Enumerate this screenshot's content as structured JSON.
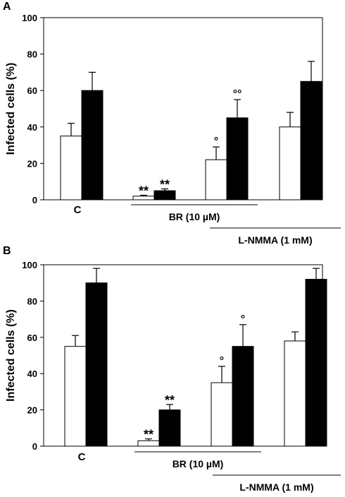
{
  "chart_data": [
    {
      "panel_label": "A",
      "type": "bar",
      "ylabel": "Infected cells (%)",
      "ylim": [
        0,
        100
      ],
      "yticks": [
        0,
        20,
        40,
        60,
        80,
        100
      ],
      "grid": false,
      "groups": [
        {
          "label": "C",
          "values": [
            35,
            60
          ],
          "errors": [
            7,
            10
          ],
          "marks": [
            "",
            ""
          ]
        },
        {
          "label": "",
          "values": [
            2,
            5
          ],
          "errors": [
            0.5,
            1
          ],
          "marks": [
            "**",
            "**"
          ]
        },
        {
          "label": "",
          "values": [
            22,
            45
          ],
          "errors": [
            7,
            10
          ],
          "marks": [
            "°",
            "°°"
          ]
        },
        {
          "label": "",
          "values": [
            40,
            65
          ],
          "errors": [
            8,
            11
          ],
          "marks": [
            "",
            ""
          ]
        }
      ],
      "series_colors": [
        "#ffffff",
        "#000000"
      ],
      "brackets": [
        {
          "label": "BR (10 µM)",
          "groups": [
            1,
            2
          ]
        },
        {
          "label": "L-NMMA (1 mM)",
          "groups": [
            2,
            3
          ]
        }
      ]
    },
    {
      "panel_label": "B",
      "type": "bar",
      "ylabel": "Infected cells (%)",
      "ylim": [
        0,
        100
      ],
      "yticks": [
        0,
        20,
        40,
        60,
        80,
        100
      ],
      "grid": false,
      "groups": [
        {
          "label": "C",
          "values": [
            55,
            90
          ],
          "errors": [
            6,
            8
          ],
          "marks": [
            "",
            ""
          ]
        },
        {
          "label": "",
          "values": [
            3,
            20
          ],
          "errors": [
            1,
            3
          ],
          "marks": [
            "**",
            "**"
          ]
        },
        {
          "label": "",
          "values": [
            35,
            55
          ],
          "errors": [
            9,
            12
          ],
          "marks": [
            "°",
            "°"
          ]
        },
        {
          "label": "",
          "values": [
            58,
            92
          ],
          "errors": [
            5,
            6
          ],
          "marks": [
            "",
            ""
          ]
        }
      ],
      "series_colors": [
        "#ffffff",
        "#000000"
      ],
      "brackets": [
        {
          "label": "BR (10 µM)",
          "groups": [
            1,
            2
          ]
        },
        {
          "label": "L-NMMA (1 mM)",
          "groups": [
            2,
            3
          ]
        }
      ]
    }
  ]
}
